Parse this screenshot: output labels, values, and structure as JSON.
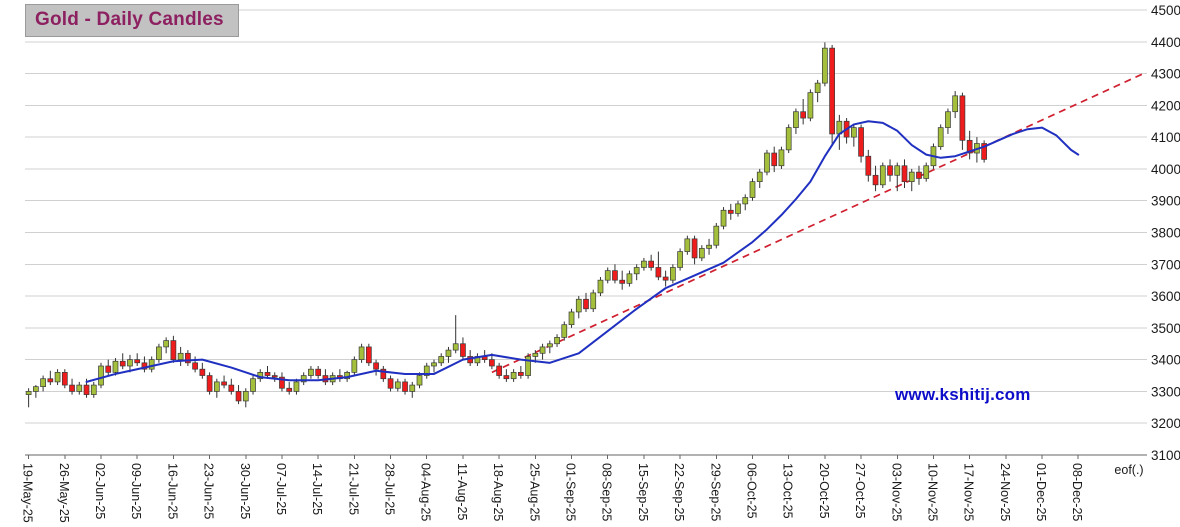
{
  "header": {
    "title": "Gold - Daily Candles",
    "title_color": "#8d2060",
    "title_bg": "#c2c2c2"
  },
  "watermark": {
    "text": "www.kshitij.com",
    "color": "#0d0dc9"
  },
  "chart_data": {
    "type": "candlestick",
    "title": "Gold - Daily Candles",
    "instrument": "Gold",
    "interval": "Daily",
    "y_axis": {
      "side": "right",
      "min": 3100,
      "max": 4500,
      "tick_step": 100,
      "ticks": [
        4500,
        4400,
        4300,
        4200,
        4100,
        4000,
        3900,
        3800,
        3700,
        3600,
        3500,
        3400,
        3300,
        3200,
        3100
      ]
    },
    "x_axis": {
      "labels": [
        "19-May-25",
        "26-May-25",
        "02-Jun-25",
        "09-Jun-25",
        "16-Jun-25",
        "23-Jun-25",
        "30-Jun-25",
        "07-Jul-25",
        "14-Jul-25",
        "21-Jul-25",
        "28-Jul-25",
        "04-Aug-25",
        "11-Aug-25",
        "18-Aug-25",
        "25-Aug-25",
        "01-Sep-25",
        "08-Sep-25",
        "15-Sep-25",
        "22-Sep-25",
        "29-Sep-25",
        "06-Oct-25",
        "13-Oct-25",
        "20-Oct-25",
        "27-Oct-25",
        "03-Nov-25",
        "10-Nov-25",
        "17-Nov-25",
        "24-Nov-25",
        "01-Dec-25",
        "08-Dec-25"
      ],
      "label_slot_step": 5,
      "end_label": "eof(.)",
      "end_label_slot": 150,
      "total_slots": 155
    },
    "grid": true,
    "legend": "none",
    "colors": {
      "up_candle": "#a3bf3b",
      "down_candle": "#ee1c1c",
      "candle_outline": "#3a3a3a",
      "wick": "#333333",
      "grid": "#d0d0d0",
      "axis": "#666666",
      "label": "#1a1a1a",
      "ma_line": "#2030c0",
      "trendline": "#cf2030"
    },
    "series": {
      "candles": [
        [
          "19-May-25",
          3290,
          3310,
          3250,
          3300
        ],
        [
          "20-May-25",
          3300,
          3320,
          3280,
          3315
        ],
        [
          "21-May-25",
          3315,
          3350,
          3300,
          3340
        ],
        [
          "22-May-25",
          3340,
          3365,
          3320,
          3330
        ],
        [
          "23-May-25",
          3330,
          3370,
          3320,
          3360
        ],
        [
          "26-May-25",
          3360,
          3370,
          3310,
          3320
        ],
        [
          "27-May-25",
          3320,
          3340,
          3290,
          3300
        ],
        [
          "28-May-25",
          3300,
          3330,
          3290,
          3320
        ],
        [
          "29-May-25",
          3320,
          3340,
          3280,
          3290
        ],
        [
          "30-May-25",
          3290,
          3330,
          3280,
          3320
        ],
        [
          "02-Jun-25",
          3320,
          3390,
          3310,
          3380
        ],
        [
          "03-Jun-25",
          3380,
          3400,
          3350,
          3360
        ],
        [
          "04-Jun-25",
          3360,
          3405,
          3350,
          3395
        ],
        [
          "05-Jun-25",
          3395,
          3420,
          3370,
          3380
        ],
        [
          "06-Jun-25",
          3380,
          3415,
          3360,
          3400
        ],
        [
          "09-Jun-25",
          3400,
          3420,
          3380,
          3390
        ],
        [
          "10-Jun-25",
          3390,
          3410,
          3360,
          3370
        ],
        [
          "11-Jun-25",
          3370,
          3410,
          3360,
          3400
        ],
        [
          "12-Jun-25",
          3400,
          3450,
          3390,
          3440
        ],
        [
          "13-Jun-25",
          3440,
          3470,
          3420,
          3460
        ],
        [
          "16-Jun-25",
          3460,
          3475,
          3390,
          3400
        ],
        [
          "17-Jun-25",
          3400,
          3440,
          3380,
          3420
        ],
        [
          "18-Jun-25",
          3420,
          3430,
          3380,
          3390
        ],
        [
          "19-Jun-25",
          3390,
          3410,
          3360,
          3370
        ],
        [
          "20-Jun-25",
          3370,
          3390,
          3340,
          3350
        ],
        [
          "23-Jun-25",
          3350,
          3360,
          3290,
          3300
        ],
        [
          "24-Jun-25",
          3300,
          3340,
          3280,
          3330
        ],
        [
          "25-Jun-25",
          3330,
          3350,
          3310,
          3320
        ],
        [
          "26-Jun-25",
          3320,
          3340,
          3290,
          3300
        ],
        [
          "27-Jun-25",
          3300,
          3320,
          3260,
          3270
        ],
        [
          "30-Jun-25",
          3270,
          3310,
          3250,
          3300
        ],
        [
          "01-Jul-25",
          3300,
          3350,
          3290,
          3340
        ],
        [
          "02-Jul-25",
          3340,
          3370,
          3330,
          3360
        ],
        [
          "03-Jul-25",
          3360,
          3380,
          3340,
          3350
        ],
        [
          "04-Jul-25",
          3350,
          3360,
          3330,
          3345
        ],
        [
          "07-Jul-25",
          3345,
          3360,
          3300,
          3310
        ],
        [
          "08-Jul-25",
          3310,
          3330,
          3290,
          3300
        ],
        [
          "09-Jul-25",
          3300,
          3340,
          3290,
          3330
        ],
        [
          "10-Jul-25",
          3330,
          3360,
          3320,
          3350
        ],
        [
          "11-Jul-25",
          3350,
          3380,
          3340,
          3370
        ],
        [
          "14-Jul-25",
          3370,
          3380,
          3340,
          3350
        ],
        [
          "15-Jul-25",
          3350,
          3370,
          3320,
          3330
        ],
        [
          "16-Jul-25",
          3330,
          3360,
          3320,
          3350
        ],
        [
          "17-Jul-25",
          3350,
          3370,
          3330,
          3340
        ],
        [
          "18-Jul-25",
          3340,
          3365,
          3330,
          3360
        ],
        [
          "21-Jul-25",
          3360,
          3410,
          3350,
          3400
        ],
        [
          "22-Jul-25",
          3400,
          3450,
          3390,
          3440
        ],
        [
          "23-Jul-25",
          3440,
          3450,
          3380,
          3390
        ],
        [
          "24-Jul-25",
          3390,
          3400,
          3350,
          3370
        ],
        [
          "25-Jul-25",
          3370,
          3380,
          3330,
          3340
        ],
        [
          "28-Jul-25",
          3340,
          3350,
          3300,
          3310
        ],
        [
          "29-Jul-25",
          3310,
          3340,
          3300,
          3330
        ],
        [
          "30-Jul-25",
          3330,
          3340,
          3290,
          3300
        ],
        [
          "31-Jul-25",
          3300,
          3330,
          3280,
          3320
        ],
        [
          "01-Aug-25",
          3320,
          3360,
          3310,
          3350
        ],
        [
          "04-Aug-25",
          3350,
          3390,
          3340,
          3380
        ],
        [
          "05-Aug-25",
          3380,
          3400,
          3360,
          3390
        ],
        [
          "06-Aug-25",
          3390,
          3420,
          3380,
          3410
        ],
        [
          "07-Aug-25",
          3410,
          3440,
          3390,
          3430
        ],
        [
          "08-Aug-25",
          3430,
          3540,
          3420,
          3450
        ],
        [
          "11-Aug-25",
          3450,
          3470,
          3400,
          3410
        ],
        [
          "12-Aug-25",
          3410,
          3430,
          3380,
          3390
        ],
        [
          "13-Aug-25",
          3390,
          3420,
          3380,
          3410
        ],
        [
          "14-Aug-25",
          3410,
          3430,
          3390,
          3400
        ],
        [
          "15-Aug-25",
          3400,
          3420,
          3370,
          3380
        ],
        [
          "18-Aug-25",
          3380,
          3390,
          3340,
          3350
        ],
        [
          "19-Aug-25",
          3350,
          3370,
          3330,
          3340
        ],
        [
          "20-Aug-25",
          3340,
          3370,
          3330,
          3360
        ],
        [
          "21-Aug-25",
          3360,
          3380,
          3340,
          3350
        ],
        [
          "22-Aug-25",
          3350,
          3420,
          3340,
          3410
        ],
        [
          "25-Aug-25",
          3410,
          3430,
          3390,
          3420
        ],
        [
          "26-Aug-25",
          3420,
          3450,
          3400,
          3440
        ],
        [
          "27-Aug-25",
          3440,
          3460,
          3420,
          3450
        ],
        [
          "28-Aug-25",
          3450,
          3480,
          3440,
          3470
        ],
        [
          "29-Aug-25",
          3470,
          3520,
          3460,
          3510
        ],
        [
          "01-Sep-25",
          3510,
          3560,
          3500,
          3550
        ],
        [
          "02-Sep-25",
          3550,
          3600,
          3530,
          3590
        ],
        [
          "03-Sep-25",
          3590,
          3610,
          3550,
          3560
        ],
        [
          "04-Sep-25",
          3560,
          3620,
          3550,
          3610
        ],
        [
          "05-Sep-25",
          3610,
          3660,
          3600,
          3650
        ],
        [
          "08-Sep-25",
          3650,
          3690,
          3640,
          3680
        ],
        [
          "09-Sep-25",
          3680,
          3700,
          3640,
          3650
        ],
        [
          "10-Sep-25",
          3650,
          3680,
          3620,
          3640
        ],
        [
          "11-Sep-25",
          3640,
          3680,
          3630,
          3670
        ],
        [
          "12-Sep-25",
          3670,
          3700,
          3650,
          3690
        ],
        [
          "15-Sep-25",
          3690,
          3720,
          3680,
          3710
        ],
        [
          "16-Sep-25",
          3710,
          3730,
          3680,
          3690
        ],
        [
          "17-Sep-25",
          3690,
          3740,
          3650,
          3660
        ],
        [
          "18-Sep-25",
          3660,
          3680,
          3630,
          3650
        ],
        [
          "19-Sep-25",
          3650,
          3700,
          3640,
          3690
        ],
        [
          "22-Sep-25",
          3690,
          3750,
          3680,
          3740
        ],
        [
          "23-Sep-25",
          3740,
          3790,
          3730,
          3780
        ],
        [
          "24-Sep-25",
          3780,
          3790,
          3700,
          3720
        ],
        [
          "25-Sep-25",
          3720,
          3760,
          3710,
          3750
        ],
        [
          "26-Sep-25",
          3750,
          3780,
          3730,
          3760
        ],
        [
          "29-Sep-25",
          3760,
          3830,
          3750,
          3820
        ],
        [
          "30-Sep-25",
          3820,
          3880,
          3810,
          3870
        ],
        [
          "01-Oct-25",
          3870,
          3890,
          3840,
          3860
        ],
        [
          "02-Oct-25",
          3860,
          3900,
          3850,
          3890
        ],
        [
          "03-Oct-25",
          3890,
          3920,
          3870,
          3910
        ],
        [
          "06-Oct-25",
          3910,
          3970,
          3900,
          3960
        ],
        [
          "07-Oct-25",
          3960,
          4000,
          3940,
          3990
        ],
        [
          "08-Oct-25",
          3990,
          4060,
          3980,
          4050
        ],
        [
          "09-Oct-25",
          4050,
          4070,
          3990,
          4010
        ],
        [
          "10-Oct-25",
          4010,
          4070,
          4000,
          4060
        ],
        [
          "13-Oct-25",
          4060,
          4140,
          4050,
          4130
        ],
        [
          "14-Oct-25",
          4130,
          4190,
          4110,
          4180
        ],
        [
          "15-Oct-25",
          4180,
          4220,
          4140,
          4160
        ],
        [
          "16-Oct-25",
          4160,
          4250,
          4150,
          4240
        ],
        [
          "17-Oct-25",
          4240,
          4280,
          4210,
          4270
        ],
        [
          "20-Oct-25",
          4270,
          4398,
          4260,
          4380
        ],
        [
          "21-Oct-25",
          4380,
          4390,
          4080,
          4110
        ],
        [
          "22-Oct-25",
          4110,
          4170,
          4060,
          4150
        ],
        [
          "23-Oct-25",
          4150,
          4160,
          4080,
          4100
        ],
        [
          "24-Oct-25",
          4100,
          4140,
          4070,
          4130
        ],
        [
          "27-Oct-25",
          4130,
          4140,
          4020,
          4040
        ],
        [
          "28-Oct-25",
          4040,
          4060,
          3960,
          3980
        ],
        [
          "29-Oct-25",
          3980,
          4010,
          3930,
          3950
        ],
        [
          "30-Oct-25",
          3950,
          4020,
          3940,
          4010
        ],
        [
          "31-Oct-25",
          4010,
          4030,
          3960,
          3980
        ],
        [
          "03-Nov-25",
          3980,
          4020,
          3930,
          4010
        ],
        [
          "04-Nov-25",
          4010,
          4030,
          3940,
          3960
        ],
        [
          "05-Nov-25",
          3960,
          4000,
          3930,
          3990
        ],
        [
          "06-Nov-25",
          3990,
          4010,
          3950,
          3970
        ],
        [
          "07-Nov-25",
          3970,
          4020,
          3960,
          4010
        ],
        [
          "10-Nov-25",
          4010,
          4080,
          4000,
          4070
        ],
        [
          "11-Nov-25",
          4070,
          4140,
          4060,
          4130
        ],
        [
          "12-Nov-25",
          4130,
          4190,
          4110,
          4180
        ],
        [
          "13-Nov-25",
          4180,
          4245,
          4160,
          4230
        ],
        [
          "14-Nov-25",
          4230,
          4240,
          4060,
          4090
        ],
        [
          "17-Nov-25",
          4090,
          4120,
          4030,
          4050
        ],
        [
          "18-Nov-25",
          4050,
          4100,
          4020,
          4080
        ],
        [
          "19-Nov-25",
          4080,
          4090,
          4020,
          4030
        ]
      ],
      "moving_average": {
        "name": "moving-average",
        "points": [
          [
            8,
            3330
          ],
          [
            12,
            3355
          ],
          [
            16,
            3375
          ],
          [
            20,
            3395
          ],
          [
            24,
            3400
          ],
          [
            28,
            3375
          ],
          [
            32,
            3345
          ],
          [
            36,
            3335
          ],
          [
            40,
            3335
          ],
          [
            44,
            3345
          ],
          [
            48,
            3365
          ],
          [
            52,
            3355
          ],
          [
            56,
            3355
          ],
          [
            60,
            3400
          ],
          [
            64,
            3415
          ],
          [
            68,
            3400
          ],
          [
            72,
            3390
          ],
          [
            76,
            3420
          ],
          [
            80,
            3490
          ],
          [
            84,
            3560
          ],
          [
            88,
            3625
          ],
          [
            92,
            3665
          ],
          [
            96,
            3705
          ],
          [
            100,
            3770
          ],
          [
            102,
            3810
          ],
          [
            104,
            3855
          ],
          [
            106,
            3905
          ],
          [
            108,
            3960
          ],
          [
            110,
            4040
          ],
          [
            112,
            4110
          ],
          [
            114,
            4140
          ],
          [
            116,
            4150
          ],
          [
            118,
            4145
          ],
          [
            120,
            4120
          ],
          [
            122,
            4075
          ],
          [
            124,
            4045
          ],
          [
            126,
            4035
          ],
          [
            128,
            4040
          ],
          [
            130,
            4055
          ],
          [
            132,
            4070
          ],
          [
            134,
            4090
          ],
          [
            136,
            4110
          ],
          [
            138,
            4125
          ],
          [
            140,
            4130
          ],
          [
            142,
            4105
          ],
          [
            144,
            4060
          ],
          [
            145,
            4045
          ]
        ]
      },
      "trendline": {
        "name": "support-trendline",
        "dashed": true,
        "points": [
          [
            64,
            3360
          ],
          [
            154,
            4300
          ]
        ]
      }
    }
  }
}
